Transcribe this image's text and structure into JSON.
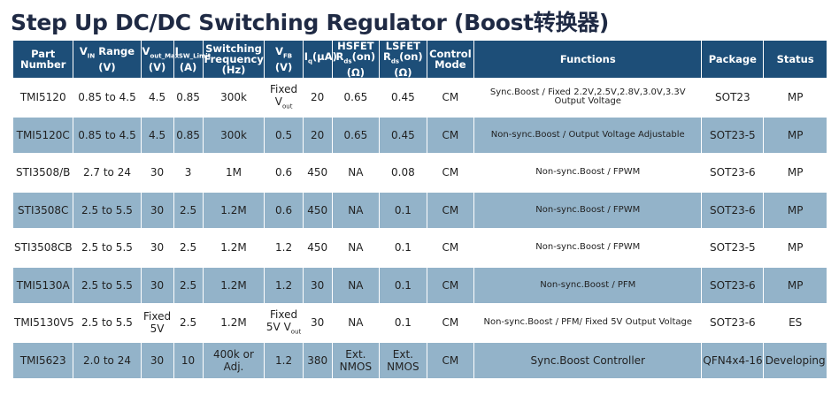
{
  "title": "Step Up DC/DC Switching Regulator (Boost转换器)",
  "headers": {
    "part": "Part Number",
    "vin_main": "V",
    "vin_sub": "IN",
    "vin_rest": " Range (V)",
    "vout_main": "V",
    "vout_sub": "out_Max",
    "vout_rest": "(V)",
    "isw_main": "I",
    "isw_sub": "SW_Limit",
    "isw_rest": "(A)",
    "freq": "Switching Frequency (Hz)",
    "vfb_main": "V",
    "vfb_sub": "FB",
    "vfb_rest": "(V)",
    "iq_main": "I",
    "iq_sub": "q",
    "iq_rest": "(μA)",
    "hsfet_label": "HSFET",
    "hsfet_main": "R",
    "hsfet_sub": "ds",
    "hsfet_rest": "(on) (Ω)",
    "lsfet_label": "LSFET",
    "lsfet_main": "R",
    "lsfet_sub": "ds",
    "lsfet_rest": "(on) (Ω)",
    "mode": "Control Mode",
    "functions": "Functions",
    "package": "Package",
    "status": "Status"
  },
  "rows": [
    {
      "part": "TMI5120",
      "vin": "0.85 to 4.5",
      "vout": "4.5",
      "isw": "0.85",
      "freq": "300k",
      "vfb_a": "Fixed",
      "vfb_b": "V",
      "vfb_sub": "out",
      "iq": "20",
      "hs": "0.65",
      "ls": "0.45",
      "mode": "CM",
      "func": "Sync.Boost / Fixed 2.2V,2.5V,2.8V,3.0V,3.3V Output Voltage",
      "pkg": "SOT23",
      "status": "MP"
    },
    {
      "part": "TMI5120C",
      "vin": "0.85 to 4.5",
      "vout": "4.5",
      "isw": "0.85",
      "freq": "300k",
      "vfb": "0.5",
      "iq": "20",
      "hs": "0.65",
      "ls": "0.45",
      "mode": "CM",
      "func": "Non-sync.Boost / Output Voltage Adjustable",
      "pkg": "SOT23-5",
      "status": "MP"
    },
    {
      "part": "STI3508/B",
      "vin": "2.7 to 24",
      "vout": "30",
      "isw": "3",
      "freq": "1M",
      "vfb": "0.6",
      "iq": "450",
      "hs": "NA",
      "ls": "0.08",
      "mode": "CM",
      "func": "Non-sync.Boost / FPWM",
      "pkg": "SOT23-6",
      "status": "MP"
    },
    {
      "part": "STI3508C",
      "vin": "2.5 to 5.5",
      "vout": "30",
      "isw": "2.5",
      "freq": "1.2M",
      "vfb": "0.6",
      "iq": "450",
      "hs": "NA",
      "ls": "0.1",
      "mode": "CM",
      "func": "Non-sync.Boost / FPWM",
      "pkg": "SOT23-6",
      "status": "MP"
    },
    {
      "part": "STI3508CB",
      "vin": "2.5 to 5.5",
      "vout": "30",
      "isw": "2.5",
      "freq": "1.2M",
      "vfb": "1.2",
      "iq": "450",
      "hs": "NA",
      "ls": "0.1",
      "mode": "CM",
      "func": "Non-sync.Boost / FPWM",
      "pkg": "SOT23-5",
      "status": "MP"
    },
    {
      "part": "TMI5130A",
      "vin": "2.5 to 5.5",
      "vout": "30",
      "isw": "2.5",
      "freq": "1.2M",
      "vfb": "1.2",
      "iq": "30",
      "hs": "NA",
      "ls": "0.1",
      "mode": "CM",
      "func": "Non-sync.Boost / PFM",
      "pkg": "SOT23-6",
      "status": "MP"
    },
    {
      "part": "TMI5130V5",
      "vin": "2.5 to 5.5",
      "vout_a": "Fixed",
      "vout_b": "5V",
      "isw": "2.5",
      "freq": "1.2M",
      "vfb_a": "Fixed",
      "vfb_b": "5V V",
      "vfb_sub": "out",
      "iq": "30",
      "hs": "NA",
      "ls": "0.1",
      "mode": "CM",
      "func": "Non-sync.Boost / PFM/ Fixed 5V Output Voltage",
      "pkg": "SOT23-6",
      "status": "ES"
    },
    {
      "part": "TMI5623",
      "vin": "2.0 to 24",
      "vout": "30",
      "isw": "10",
      "freq_a": "400k or",
      "freq_b": "Adj.",
      "vfb": "1.2",
      "iq": "380",
      "hs_a": "Ext.",
      "hs_b": "NMOS",
      "ls_a": "Ext.",
      "ls_b": "NMOS",
      "mode": "CM",
      "func": "Sync.Boost Controller",
      "pkg": "QFN4x4-16",
      "status": "Developing"
    }
  ]
}
